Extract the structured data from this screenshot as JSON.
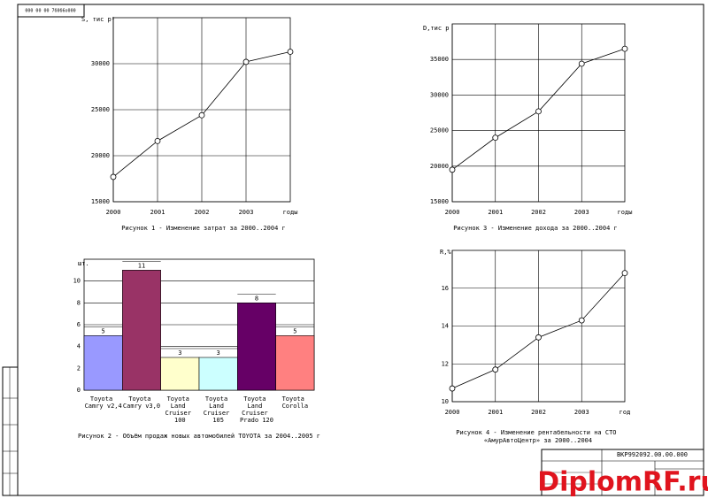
{
  "sheet": {
    "stamp": "000 00 00 7б0б6о000",
    "doc_code": "ВКР992092.00.00.000",
    "watermark": "DiplomRF.ru"
  },
  "chart_data": [
    {
      "type": "line",
      "y_label": "S, тис р²",
      "x_label": "годы",
      "caption": "Рисунок 1 - Изменение затрат за  2000..2004 г",
      "x": [
        2000,
        2001,
        2002,
        2003,
        2004
      ],
      "xlim": [
        2000,
        2004
      ],
      "xticks": [
        2000,
        2001,
        2002,
        2003
      ],
      "values": [
        17700,
        21600,
        24400,
        30200,
        31300
      ],
      "ylim": [
        15000,
        35000
      ],
      "yticks": [
        15000,
        20000,
        25000,
        30000
      ],
      "color": "#000000",
      "grid": true
    },
    {
      "type": "bar",
      "y_label": "шт.",
      "caption": "Рисунок 2 - Объём продаж новых автомобилей TOYOTA  за 2004..2005 г",
      "categories": [
        "Toyota\nCamry v2,4",
        "Toyota\nCamry v3,0",
        "Toyota\nLand\nCruiser\n100",
        "Toyota\nLand\nCruiser\n105",
        "Toyota\nLand\nCruiser\nPrado 120",
        "Toyota\nCorolla"
      ],
      "values": [
        5,
        11,
        3,
        3,
        8,
        5
      ],
      "colors": [
        "#9999ff",
        "#993366",
        "#ffffcc",
        "#ccffff",
        "#660066",
        "#ff8080"
      ],
      "ylim": [
        0,
        12
      ],
      "yticks": [
        0,
        2,
        4,
        6,
        8,
        10
      ],
      "grid": true
    },
    {
      "type": "line",
      "y_label": "D,тис р",
      "x_label": "годы",
      "caption": "Рисунок 3 - Изменение дохода за 2000..2004 г",
      "x": [
        2000,
        2001,
        2002,
        2003,
        2004
      ],
      "xlim": [
        2000,
        2004
      ],
      "xticks": [
        2000,
        2001,
        2002,
        2003
      ],
      "values": [
        19500,
        24000,
        27700,
        34400,
        36500
      ],
      "ylim": [
        15000,
        40000
      ],
      "yticks": [
        15000,
        20000,
        25000,
        30000,
        35000
      ],
      "color": "#000000",
      "grid": true
    },
    {
      "type": "line",
      "y_label": "R,%",
      "x_label": "год",
      "caption": "Рисунок 4 - Изменение рентабельности на  СТО\n«АмурАвтоЦентр» за 2000..2004",
      "x": [
        2000,
        2001,
        2002,
        2003,
        2004
      ],
      "xlim": [
        2000,
        2004
      ],
      "xticks": [
        2000,
        2001,
        2002,
        2003
      ],
      "values": [
        10.7,
        11.7,
        13.4,
        14.3,
        16.8
      ],
      "ylim": [
        10,
        18
      ],
      "yticks": [
        10,
        12,
        14,
        16
      ],
      "color": "#000000",
      "grid": true
    }
  ]
}
